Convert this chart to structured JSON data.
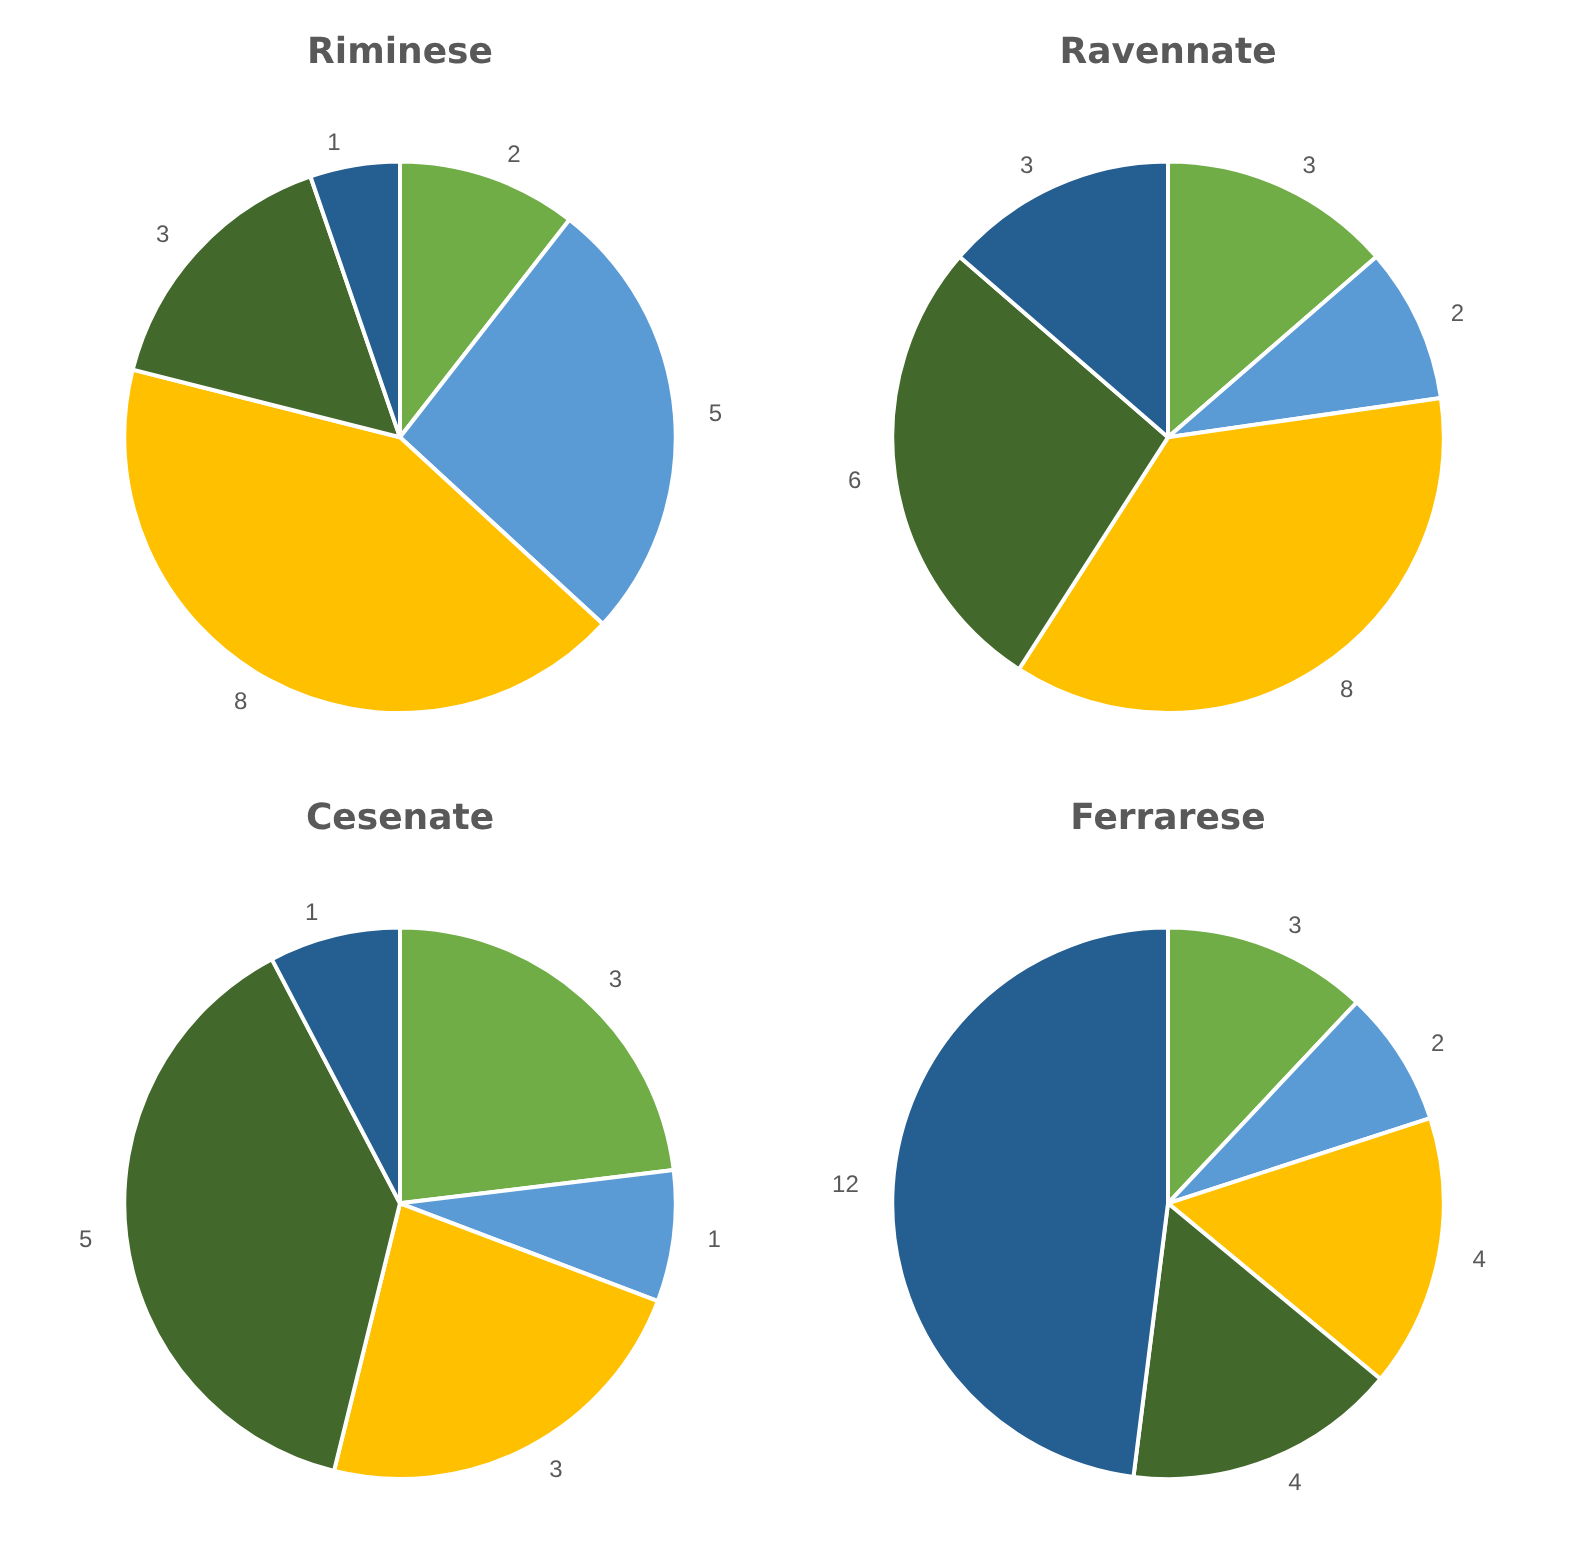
{
  "chart_data": [
    {
      "type": "pie",
      "title": "Riminese",
      "categories": [
        null,
        null,
        null,
        null,
        null
      ],
      "values": [
        2,
        5,
        8,
        3,
        1
      ],
      "colors": [
        "#70ad47",
        "#5b9bd5",
        "#ffc000",
        "#43682b",
        "#255e91"
      ],
      "data_labels": true
    },
    {
      "type": "pie",
      "title": "Ravennate",
      "categories": [
        null,
        null,
        null,
        null,
        null
      ],
      "values": [
        3,
        2,
        8,
        6,
        3
      ],
      "colors": [
        "#70ad47",
        "#5b9bd5",
        "#ffc000",
        "#43682b",
        "#255e91"
      ],
      "data_labels": true
    },
    {
      "type": "pie",
      "title": "Cesenate",
      "categories": [
        null,
        null,
        null,
        null,
        null
      ],
      "values": [
        3,
        1,
        3,
        5,
        1
      ],
      "colors": [
        "#70ad47",
        "#5b9bd5",
        "#ffc000",
        "#43682b",
        "#255e91"
      ],
      "data_labels": true
    },
    {
      "type": "pie",
      "title": "Ferrarese",
      "categories": [
        null,
        null,
        null,
        null,
        null
      ],
      "values": [
        3,
        2,
        4,
        4,
        12
      ],
      "colors": [
        "#70ad47",
        "#5b9bd5",
        "#ffc000",
        "#43682b",
        "#255e91"
      ],
      "data_labels": true
    }
  ]
}
